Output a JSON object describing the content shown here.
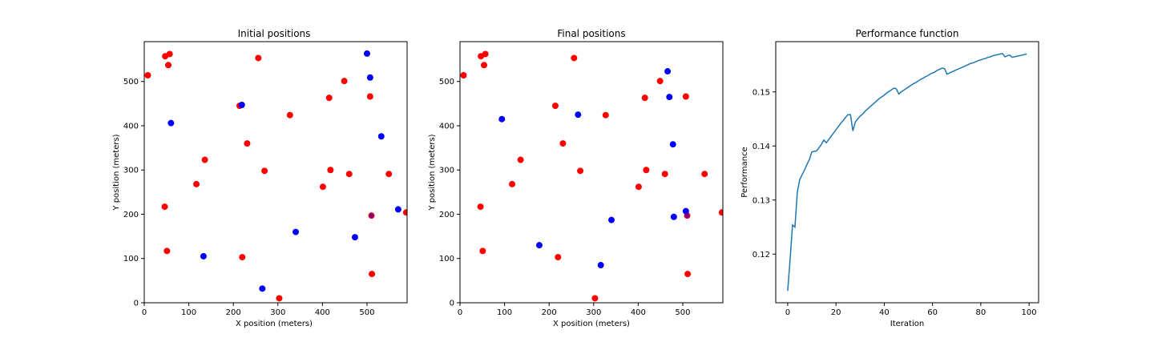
{
  "chart_data": [
    {
      "type": "scatter",
      "title": "Initial positions",
      "xlabel": "X position (meters)",
      "ylabel": "Y position (meters)",
      "xlim": [
        0,
        590
      ],
      "ylim": [
        0,
        590
      ],
      "xticks": [
        0,
        100,
        200,
        300,
        400,
        500
      ],
      "yticks": [
        0,
        100,
        200,
        300,
        400,
        500
      ],
      "series": [
        {
          "color": "#ff0000",
          "points": [
            [
              8,
              514
            ],
            [
              47,
              557
            ],
            [
              57,
              562
            ],
            [
              54,
              537
            ],
            [
              214,
              445
            ],
            [
              256,
              553
            ],
            [
              327,
              424
            ],
            [
              449,
              501
            ],
            [
              415,
              463
            ],
            [
              507,
              466
            ],
            [
              231,
              360
            ],
            [
              136,
              323
            ],
            [
              270,
              298
            ],
            [
              418,
              300
            ],
            [
              460,
              291
            ],
            [
              549,
              291
            ],
            [
              401,
              262
            ],
            [
              117,
              268
            ],
            [
              46,
              217
            ],
            [
              588,
              204
            ],
            [
              51,
              117
            ],
            [
              220,
              103
            ],
            [
              511,
              65
            ],
            [
              303,
              10
            ],
            [
              510,
              197
            ]
          ]
        },
        {
          "color": "#0000ff",
          "points": [
            [
              500,
              563
            ],
            [
              507,
              509
            ],
            [
              219,
              447
            ],
            [
              60,
              406
            ],
            [
              532,
              376
            ],
            [
              570,
              211
            ],
            [
              340,
              160
            ],
            [
              473,
              148
            ],
            [
              133,
              105
            ],
            [
              265,
              32
            ]
          ]
        }
      ],
      "overlap_points": [
        {
          "x": 510,
          "y": 197,
          "color": "#800080"
        }
      ]
    },
    {
      "type": "scatter",
      "title": "Final positions",
      "xlabel": "X position (meters)",
      "ylabel": "Y position (meters)",
      "xlim": [
        0,
        590
      ],
      "ylim": [
        0,
        590
      ],
      "xticks": [
        0,
        100,
        200,
        300,
        400,
        500
      ],
      "yticks": [
        0,
        100,
        200,
        300,
        400,
        500
      ],
      "series": [
        {
          "color": "#ff0000",
          "points": [
            [
              8,
              514
            ],
            [
              47,
              557
            ],
            [
              57,
              562
            ],
            [
              54,
              537
            ],
            [
              214,
              445
            ],
            [
              256,
              553
            ],
            [
              327,
              424
            ],
            [
              449,
              501
            ],
            [
              415,
              463
            ],
            [
              507,
              466
            ],
            [
              231,
              360
            ],
            [
              136,
              323
            ],
            [
              270,
              298
            ],
            [
              418,
              300
            ],
            [
              460,
              291
            ],
            [
              549,
              291
            ],
            [
              401,
              262
            ],
            [
              117,
              268
            ],
            [
              46,
              217
            ],
            [
              588,
              204
            ],
            [
              51,
              117
            ],
            [
              220,
              103
            ],
            [
              511,
              65
            ],
            [
              303,
              10
            ],
            [
              510,
              197
            ]
          ]
        },
        {
          "color": "#0000ff",
          "points": [
            [
              466,
              523
            ],
            [
              470,
              465
            ],
            [
              94,
              415
            ],
            [
              265,
              425
            ],
            [
              478,
              358
            ],
            [
              507,
              207
            ],
            [
              340,
              187
            ],
            [
              480,
              194
            ],
            [
              178,
              130
            ],
            [
              316,
              85
            ]
          ]
        }
      ],
      "overlap_points": [
        {
          "x": 510,
          "y": 197,
          "color": "#800080"
        }
      ]
    },
    {
      "type": "line",
      "title": "Performance function",
      "xlabel": "Iteration",
      "ylabel": "Performance",
      "xlim": [
        -4.95,
        103.95
      ],
      "ylim": [
        0.111,
        0.1593
      ],
      "xticks": [
        0,
        20,
        40,
        60,
        80,
        100
      ],
      "yticks": [
        0.12,
        0.13,
        0.14,
        0.15
      ],
      "ytick_labels": [
        "0.12",
        "0.13",
        "0.14",
        "0.15"
      ],
      "series": [
        {
          "color": "#1f77b4",
          "x": [
            0,
            1,
            2,
            3,
            4,
            5,
            6,
            7,
            8,
            9,
            10,
            11,
            12,
            13,
            14,
            15,
            16,
            17,
            18,
            19,
            20,
            21,
            22,
            23,
            24,
            25,
            26,
            27,
            28,
            29,
            30,
            31,
            32,
            33,
            34,
            35,
            36,
            37,
            38,
            39,
            40,
            41,
            42,
            43,
            44,
            45,
            46,
            47,
            48,
            49,
            50,
            51,
            52,
            53,
            54,
            55,
            56,
            57,
            58,
            59,
            60,
            61,
            62,
            63,
            64,
            65,
            66,
            67,
            68,
            69,
            70,
            71,
            72,
            73,
            74,
            75,
            76,
            77,
            78,
            79,
            80,
            81,
            82,
            83,
            84,
            85,
            86,
            87,
            88,
            89,
            90,
            91,
            92,
            93,
            94,
            95,
            96,
            97,
            98,
            99
          ],
          "y": [
            0.1132,
            0.119,
            0.1254,
            0.125,
            0.1315,
            0.1338,
            0.1347,
            0.1356,
            0.1366,
            0.1375,
            0.1389,
            0.139,
            0.1391,
            0.1397,
            0.1403,
            0.1411,
            0.1406,
            0.1412,
            0.1418,
            0.1424,
            0.143,
            0.1436,
            0.1442,
            0.1447,
            0.1453,
            0.1458,
            0.1458,
            0.1428,
            0.1444,
            0.145,
            0.1455,
            0.1459,
            0.1464,
            0.1468,
            0.1472,
            0.1476,
            0.148,
            0.1484,
            0.1488,
            0.1491,
            0.1494,
            0.1498,
            0.1501,
            0.1504,
            0.1507,
            0.1506,
            0.1496,
            0.15,
            0.1503,
            0.1506,
            0.1509,
            0.1512,
            0.1515,
            0.1517,
            0.152,
            0.1523,
            0.1525,
            0.1528,
            0.153,
            0.1533,
            0.1535,
            0.1537,
            0.154,
            0.1542,
            0.1544,
            0.1543,
            0.1533,
            0.1535,
            0.1537,
            0.1539,
            0.1541,
            0.1543,
            0.1545,
            0.1547,
            0.1549,
            0.1551,
            0.1553,
            0.1554,
            0.1556,
            0.1558,
            0.1559,
            0.1561,
            0.1562,
            0.1564,
            0.1565,
            0.1567,
            0.1568,
            0.1569,
            0.157,
            0.1571,
            0.1565,
            0.1567,
            0.1568,
            0.1564,
            0.1565,
            0.1566,
            0.1567,
            0.1568,
            0.1569,
            0.157
          ]
        }
      ]
    }
  ]
}
